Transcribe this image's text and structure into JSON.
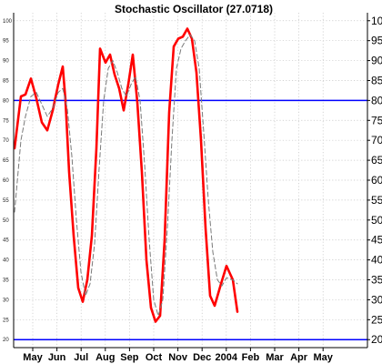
{
  "chart_data": {
    "type": "line",
    "title": "Stochastic Oscillator (27.0718)",
    "ylim": [
      20,
      100
    ],
    "yticks": [
      20,
      25,
      30,
      35,
      40,
      45,
      50,
      55,
      60,
      65,
      70,
      75,
      80,
      85,
      90,
      95,
      100
    ],
    "x_labels": [
      "May",
      "Jun",
      "Jul",
      "Aug",
      "Sep",
      "Oct",
      "Nov",
      "Dec",
      "2004",
      "Feb",
      "Mar",
      "Apr",
      "May"
    ],
    "grid": true,
    "legend": "none",
    "reference_lines": [
      {
        "value": 80,
        "color": "#0000ff"
      },
      {
        "value": 20,
        "color": "#0000ff"
      }
    ],
    "series": [
      {
        "style": "solid",
        "color": "#ff0000",
        "points": [
          [
            0,
            68
          ],
          [
            0.7,
            81
          ],
          [
            1.2,
            81.5
          ],
          [
            1.8,
            85.5
          ],
          [
            2.4,
            80.5
          ],
          [
            3.0,
            74.5
          ],
          [
            3.6,
            72.5
          ],
          [
            4.2,
            77.5
          ],
          [
            4.8,
            84
          ],
          [
            5.3,
            88.5
          ],
          [
            5.6,
            80
          ],
          [
            6.0,
            62
          ],
          [
            6.5,
            46
          ],
          [
            7.0,
            33
          ],
          [
            7.5,
            29.5
          ],
          [
            8.0,
            35
          ],
          [
            8.5,
            46
          ],
          [
            9.0,
            68
          ],
          [
            9.4,
            93
          ],
          [
            10.0,
            89.5
          ],
          [
            10.5,
            91.5
          ],
          [
            11.0,
            86.5
          ],
          [
            11.5,
            83
          ],
          [
            12.0,
            77.5
          ],
          [
            12.5,
            84
          ],
          [
            13.0,
            91.5
          ],
          [
            13.5,
            79.5
          ],
          [
            14.0,
            62
          ],
          [
            14.5,
            40
          ],
          [
            15.0,
            28
          ],
          [
            15.5,
            24.5
          ],
          [
            16.0,
            26
          ],
          [
            16.5,
            45
          ],
          [
            17.0,
            77
          ],
          [
            17.5,
            93.5
          ],
          [
            18.0,
            95.5
          ],
          [
            18.5,
            96
          ],
          [
            19.0,
            98
          ],
          [
            19.5,
            95.5
          ],
          [
            20.0,
            87
          ],
          [
            20.5,
            70
          ],
          [
            21.0,
            48
          ],
          [
            21.5,
            31
          ],
          [
            22.0,
            28.5
          ],
          [
            22.7,
            34
          ],
          [
            23.3,
            38.5
          ],
          [
            24.0,
            35
          ],
          [
            24.5,
            27
          ]
        ]
      },
      {
        "style": "dashed",
        "color": "#7a7a7a",
        "points": [
          [
            0,
            52
          ],
          [
            0.7,
            70
          ],
          [
            1.2,
            76
          ],
          [
            1.8,
            81
          ],
          [
            2.4,
            82
          ],
          [
            3.0,
            79
          ],
          [
            3.6,
            76
          ],
          [
            4.2,
            78
          ],
          [
            4.8,
            82
          ],
          [
            5.3,
            83
          ],
          [
            5.8,
            78
          ],
          [
            6.3,
            66
          ],
          [
            6.8,
            50
          ],
          [
            7.3,
            37
          ],
          [
            7.8,
            31
          ],
          [
            8.3,
            34
          ],
          [
            8.8,
            44
          ],
          [
            9.3,
            63
          ],
          [
            9.8,
            80
          ],
          [
            10.3,
            88
          ],
          [
            10.8,
            90
          ],
          [
            11.3,
            87
          ],
          [
            11.8,
            83
          ],
          [
            12.3,
            81
          ],
          [
            12.8,
            84
          ],
          [
            13.3,
            86
          ],
          [
            13.8,
            80
          ],
          [
            14.3,
            64
          ],
          [
            14.8,
            45
          ],
          [
            15.3,
            30
          ],
          [
            15.8,
            26
          ],
          [
            16.3,
            30
          ],
          [
            16.8,
            48
          ],
          [
            17.3,
            70
          ],
          [
            17.8,
            88
          ],
          [
            18.3,
            93
          ],
          [
            18.8,
            95
          ],
          [
            19.3,
            96.5
          ],
          [
            19.8,
            95
          ],
          [
            20.3,
            88
          ],
          [
            20.8,
            72
          ],
          [
            21.3,
            55
          ],
          [
            21.8,
            42
          ],
          [
            22.3,
            35
          ],
          [
            22.8,
            33.5
          ],
          [
            23.3,
            35.5
          ],
          [
            24.0,
            35
          ],
          [
            24.5,
            34
          ]
        ]
      }
    ]
  }
}
